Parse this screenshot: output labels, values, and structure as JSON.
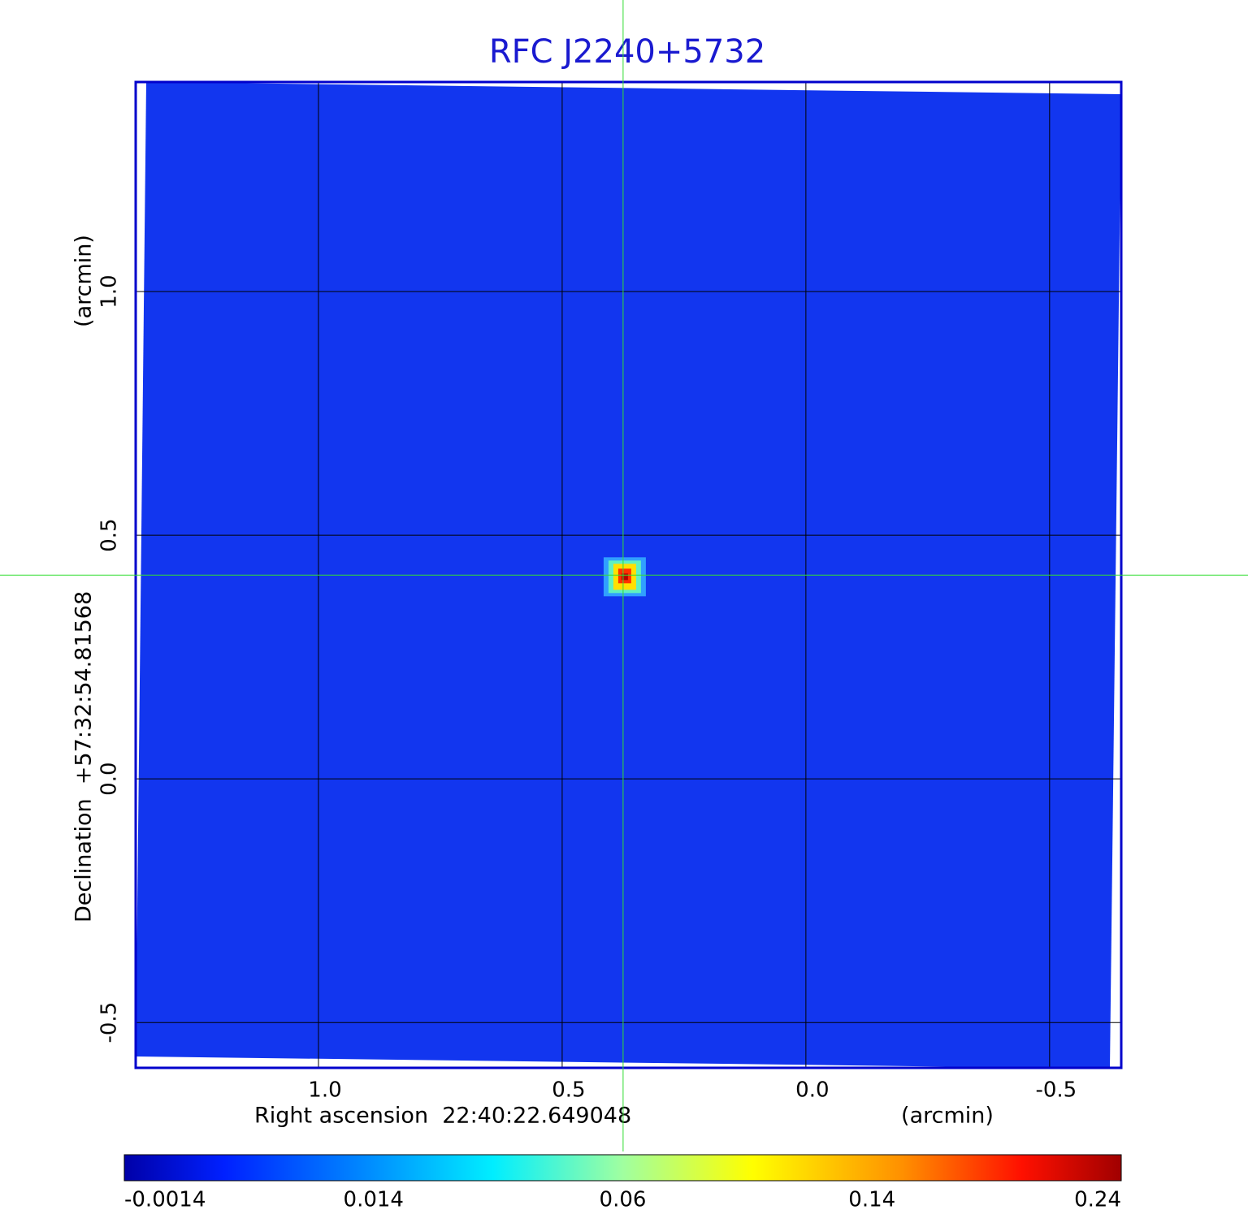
{
  "chart_data": {
    "type": "image",
    "title": "RFC J2240+5732",
    "x_label": "Right ascension  22:40:22.649048",
    "x_unit": "(arcmin)",
    "y_label": "Declination  +57:32:54.81568",
    "y_unit": "(arcmin)",
    "xlim": [
      1.375,
      -0.647
    ],
    "ylim": [
      -0.593,
      1.43
    ],
    "xticks": [
      {
        "value": 1,
        "label": "1.0"
      },
      0.5,
      {
        "value": 0,
        "label": "0.0"
      },
      -0.5
    ],
    "yticks": [
      -0.5,
      {
        "value": 0,
        "label": "0.0"
      },
      0.5,
      {
        "value": 1,
        "label": "1.0"
      }
    ],
    "grid": true,
    "crosshair": {
      "x": 0.375,
      "y": 0.418
    },
    "colorbar": {
      "ticks": [
        -0.0014,
        0.014,
        0.06,
        0.14,
        0.24
      ]
    }
  }
}
